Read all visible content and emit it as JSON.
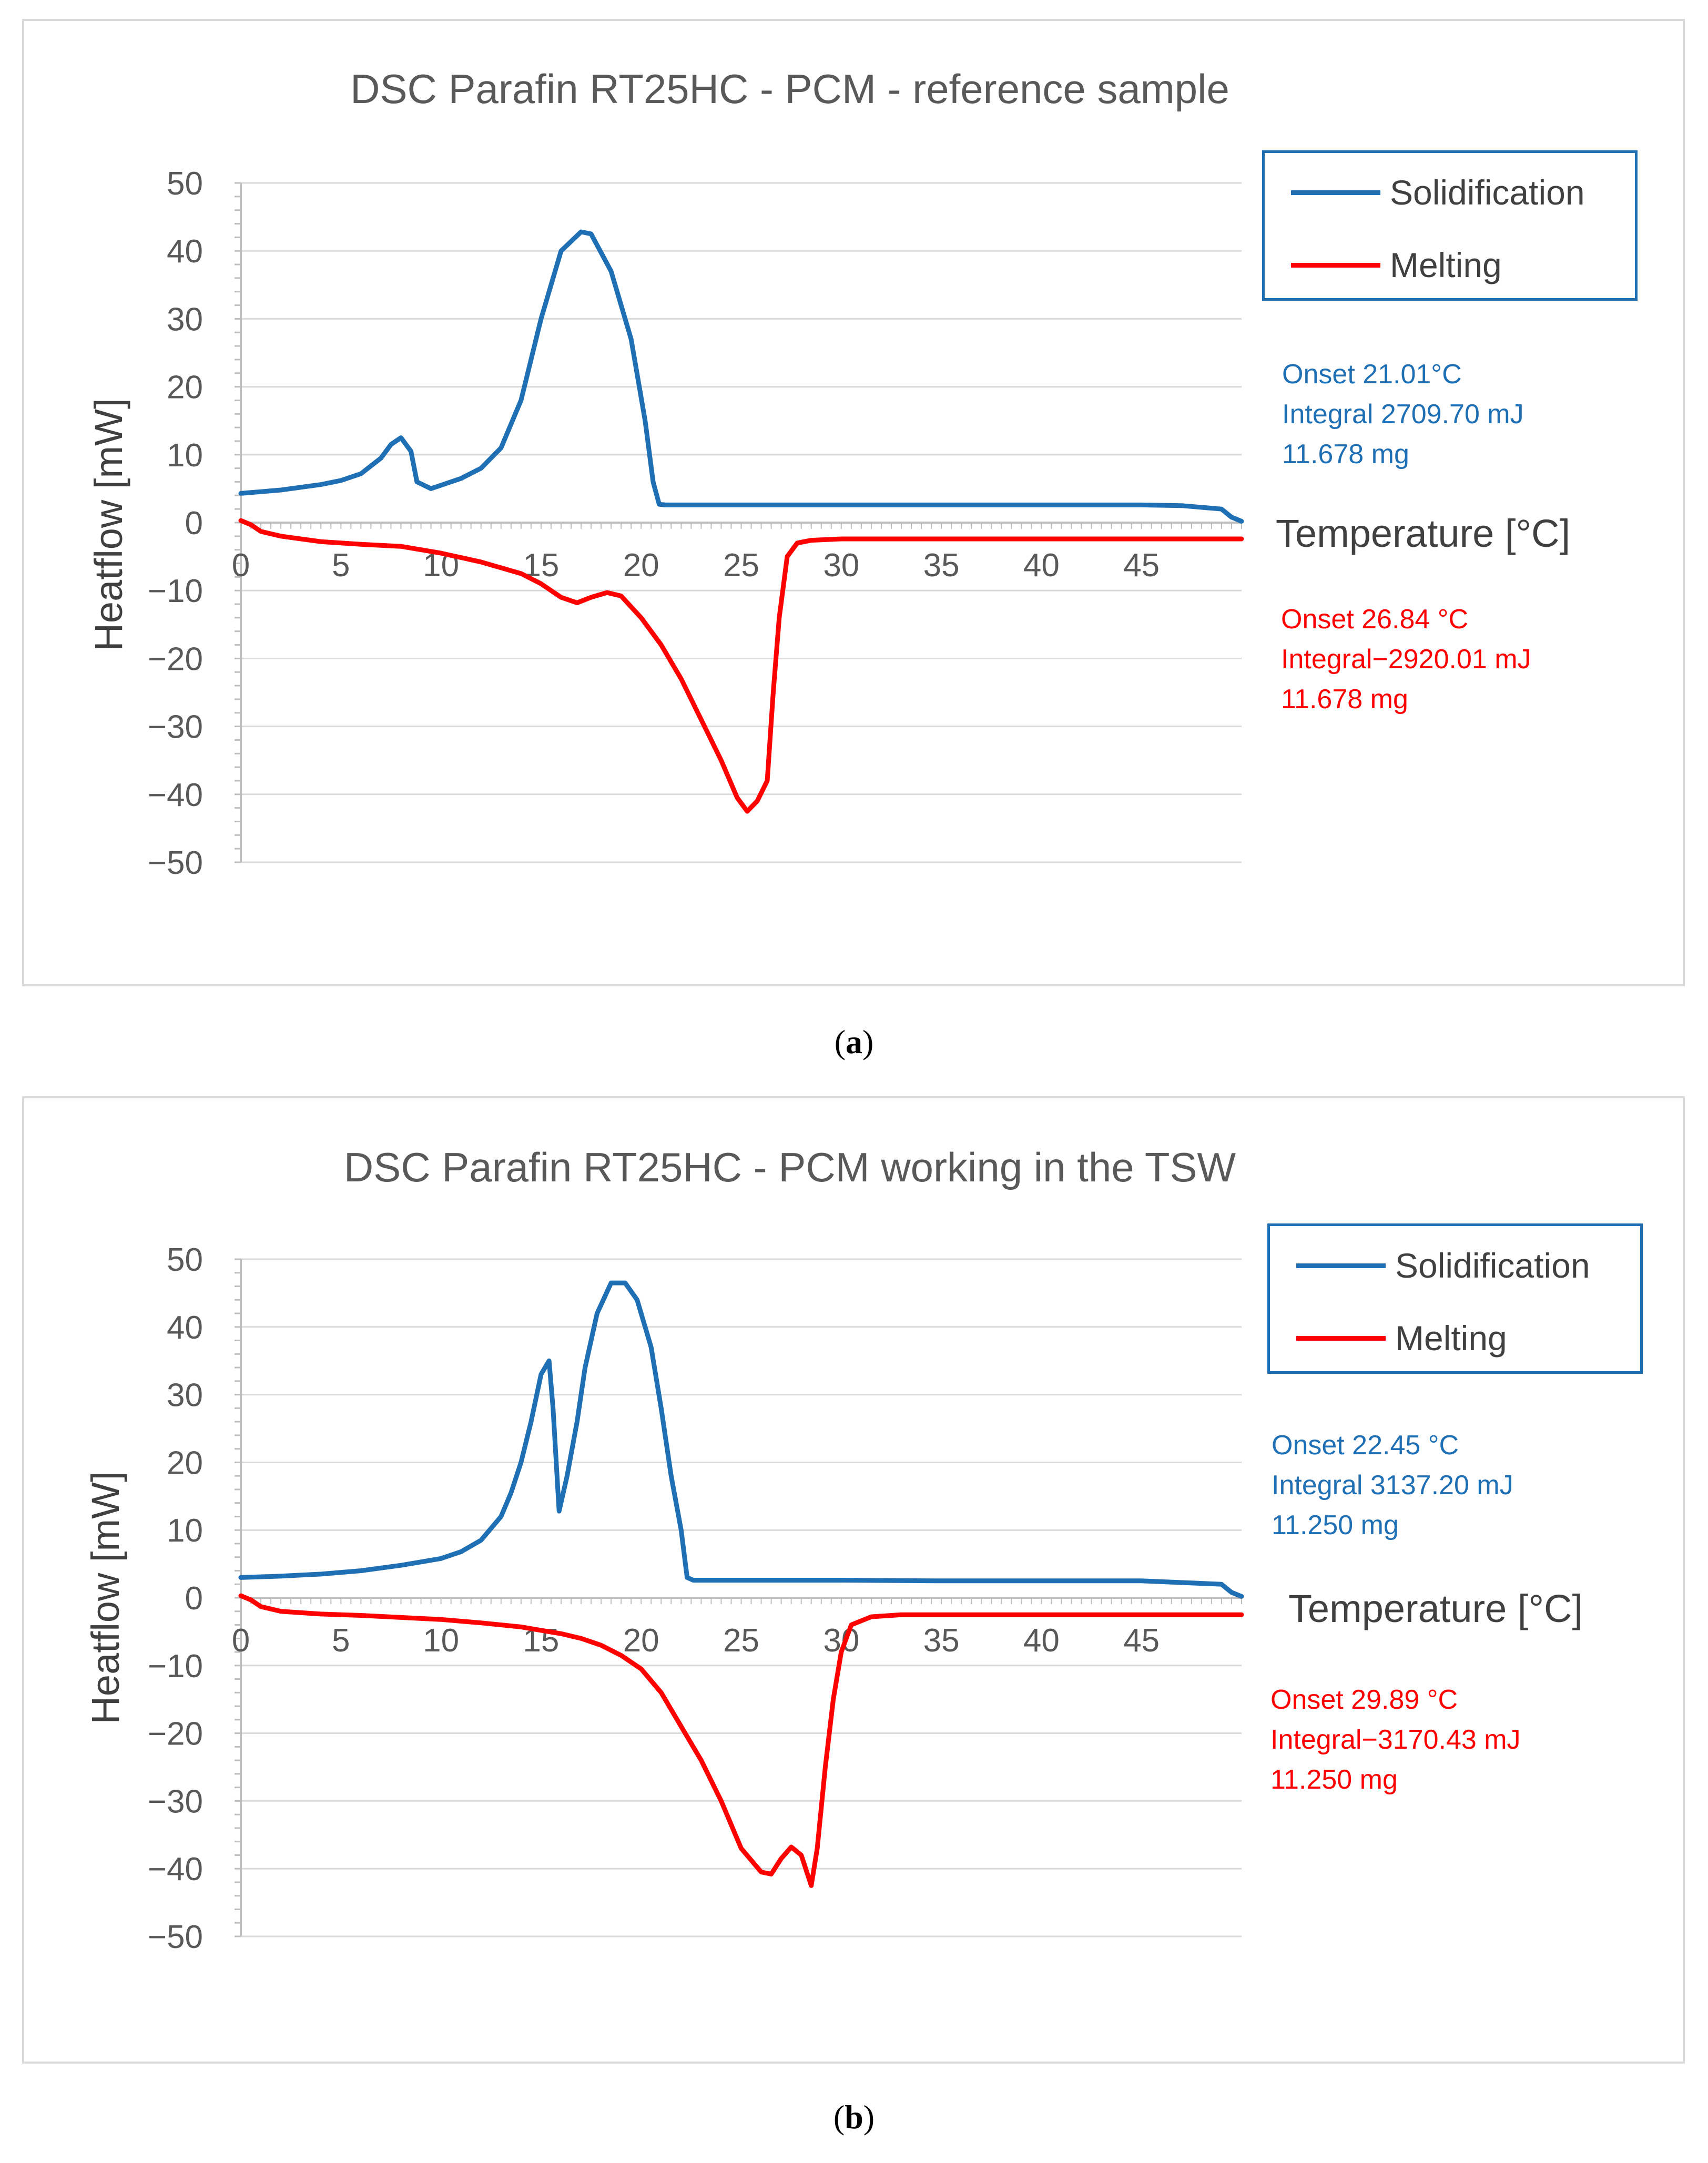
{
  "colors": {
    "solidification": "#1f6fb4",
    "melting": "#ff0000",
    "grid": "#d9d9d9",
    "axis": "#bfbfbf"
  },
  "panels": [
    {
      "caption_letter": "a",
      "annotations": {
        "solidification": [
          "Onset 21.01°C",
          "Integral 2709.70 mJ",
          "11.678 mg"
        ],
        "melting": [
          "Onset 26.84 °C",
          "Integral−2920.01 mJ",
          "11.678 mg"
        ]
      }
    },
    {
      "caption_letter": "b",
      "annotations": {
        "solidification": [
          "Onset 22.45 °C",
          "Integral 3137.20 mJ",
          "11.250 mg"
        ],
        "melting": [
          "Onset 29.89 °C",
          "Integral−3170.43 mJ",
          "11.250 mg"
        ]
      }
    }
  ],
  "chart_data": [
    {
      "type": "line",
      "title": "DSC Parafin RT25HC - PCM - reference sample",
      "xlabel": "Temperature [°C]",
      "ylabel": "Heatflow [mW]",
      "xlim": [
        0,
        50
      ],
      "ylim": [
        -50,
        50
      ],
      "x_ticks": [
        0,
        5,
        10,
        15,
        20,
        25,
        30,
        35,
        40,
        45
      ],
      "y_ticks": [
        50,
        40,
        30,
        20,
        10,
        0,
        -10,
        -20,
        -30,
        -40,
        -50
      ],
      "legend": [
        "Solidification",
        "Melting"
      ],
      "legend_position": "top-right",
      "series": [
        {
          "name": "Solidification",
          "x": [
            0,
            2,
            4,
            5,
            6,
            7,
            7.5,
            8,
            8.5,
            8.8,
            9.5,
            11,
            12,
            13,
            14,
            15,
            16,
            17,
            17.5,
            18.5,
            19.5,
            20.2,
            20.6,
            20.9,
            21.2,
            25,
            30,
            35,
            40,
            45,
            47,
            49,
            49.5,
            50
          ],
          "y": [
            4.3,
            4.8,
            5.6,
            6.2,
            7.2,
            9.5,
            11.5,
            12.5,
            10.5,
            6.0,
            5.0,
            6.5,
            8.0,
            11.0,
            18.0,
            30.0,
            40.0,
            42.8,
            42.5,
            37.0,
            27.0,
            15.0,
            6.0,
            2.7,
            2.6,
            2.6,
            2.6,
            2.6,
            2.6,
            2.6,
            2.5,
            2.0,
            0.8,
            0.2
          ]
        },
        {
          "name": "Melting",
          "x": [
            0,
            0.5,
            1,
            2,
            4,
            6,
            8,
            10,
            12,
            14,
            15,
            16,
            16.8,
            17.5,
            18.3,
            19,
            20,
            21,
            22,
            23,
            24,
            24.8,
            25.3,
            25.8,
            26.3,
            26.6,
            26.9,
            27.3,
            27.8,
            28.5,
            30,
            35,
            40,
            45,
            50
          ],
          "y": [
            0.3,
            -0.3,
            -1.3,
            -2.0,
            -2.8,
            -3.2,
            -3.5,
            -4.5,
            -5.8,
            -7.5,
            -9.0,
            -11.0,
            -11.8,
            -11.0,
            -10.3,
            -10.8,
            -14.0,
            -18.0,
            -23.0,
            -29.0,
            -35.0,
            -40.5,
            -42.5,
            -41.0,
            -38.0,
            -25.0,
            -14.0,
            -5.0,
            -3.0,
            -2.6,
            -2.4,
            -2.4,
            -2.4,
            -2.4,
            -2.4
          ]
        }
      ]
    },
    {
      "type": "line",
      "title": "DSC Parafin RT25HC - PCM working in the TSW",
      "xlabel": "Temperature [°C]",
      "ylabel": "Heatflow [mW]",
      "xlim": [
        0,
        50
      ],
      "ylim": [
        -50,
        50
      ],
      "x_ticks": [
        0,
        5,
        10,
        15,
        20,
        25,
        30,
        35,
        40,
        45
      ],
      "y_ticks": [
        50,
        40,
        30,
        20,
        10,
        0,
        -10,
        -20,
        -30,
        -40,
        -50
      ],
      "legend": [
        "Solidification",
        "Melting"
      ],
      "legend_position": "top-right",
      "series": [
        {
          "name": "Solidification",
          "x": [
            0,
            2,
            4,
            6,
            8,
            10,
            11,
            12,
            13,
            13.5,
            14,
            14.5,
            15,
            15.4,
            15.6,
            15.9,
            16.3,
            16.8,
            17.2,
            17.8,
            18.5,
            19.2,
            19.8,
            20.5,
            21,
            21.5,
            22,
            22.3,
            22.6,
            25,
            30,
            35,
            40,
            45,
            49,
            49.5,
            50
          ],
          "y": [
            3.0,
            3.2,
            3.5,
            4.0,
            4.8,
            5.8,
            6.8,
            8.5,
            12.0,
            15.5,
            20.0,
            26.0,
            33.0,
            35.0,
            28.0,
            12.8,
            18.0,
            26.0,
            34.0,
            42.0,
            46.5,
            46.5,
            44.0,
            37.0,
            28.0,
            18.0,
            10.0,
            3.0,
            2.6,
            2.6,
            2.6,
            2.5,
            2.5,
            2.5,
            2.0,
            0.8,
            0.2
          ]
        },
        {
          "name": "Melting",
          "x": [
            0,
            0.5,
            1,
            2,
            4,
            6,
            8,
            10,
            12,
            14,
            16,
            17,
            18,
            19,
            20,
            21,
            22,
            23,
            24,
            25,
            26,
            26.5,
            27,
            27.5,
            28,
            28.5,
            28.8,
            29.2,
            29.6,
            30,
            30.5,
            31.5,
            33,
            35,
            40,
            45,
            50
          ],
          "y": [
            0.3,
            -0.3,
            -1.3,
            -2.0,
            -2.4,
            -2.6,
            -2.9,
            -3.2,
            -3.7,
            -4.3,
            -5.3,
            -6.0,
            -7.0,
            -8.5,
            -10.5,
            -14.0,
            -19.0,
            -24.0,
            -30.0,
            -37.0,
            -40.5,
            -40.8,
            -38.5,
            -36.8,
            -38.0,
            -42.5,
            -37.0,
            -25.0,
            -15.0,
            -8.0,
            -4.0,
            -2.8,
            -2.5,
            -2.5,
            -2.5,
            -2.5,
            -2.5
          ]
        }
      ]
    }
  ]
}
